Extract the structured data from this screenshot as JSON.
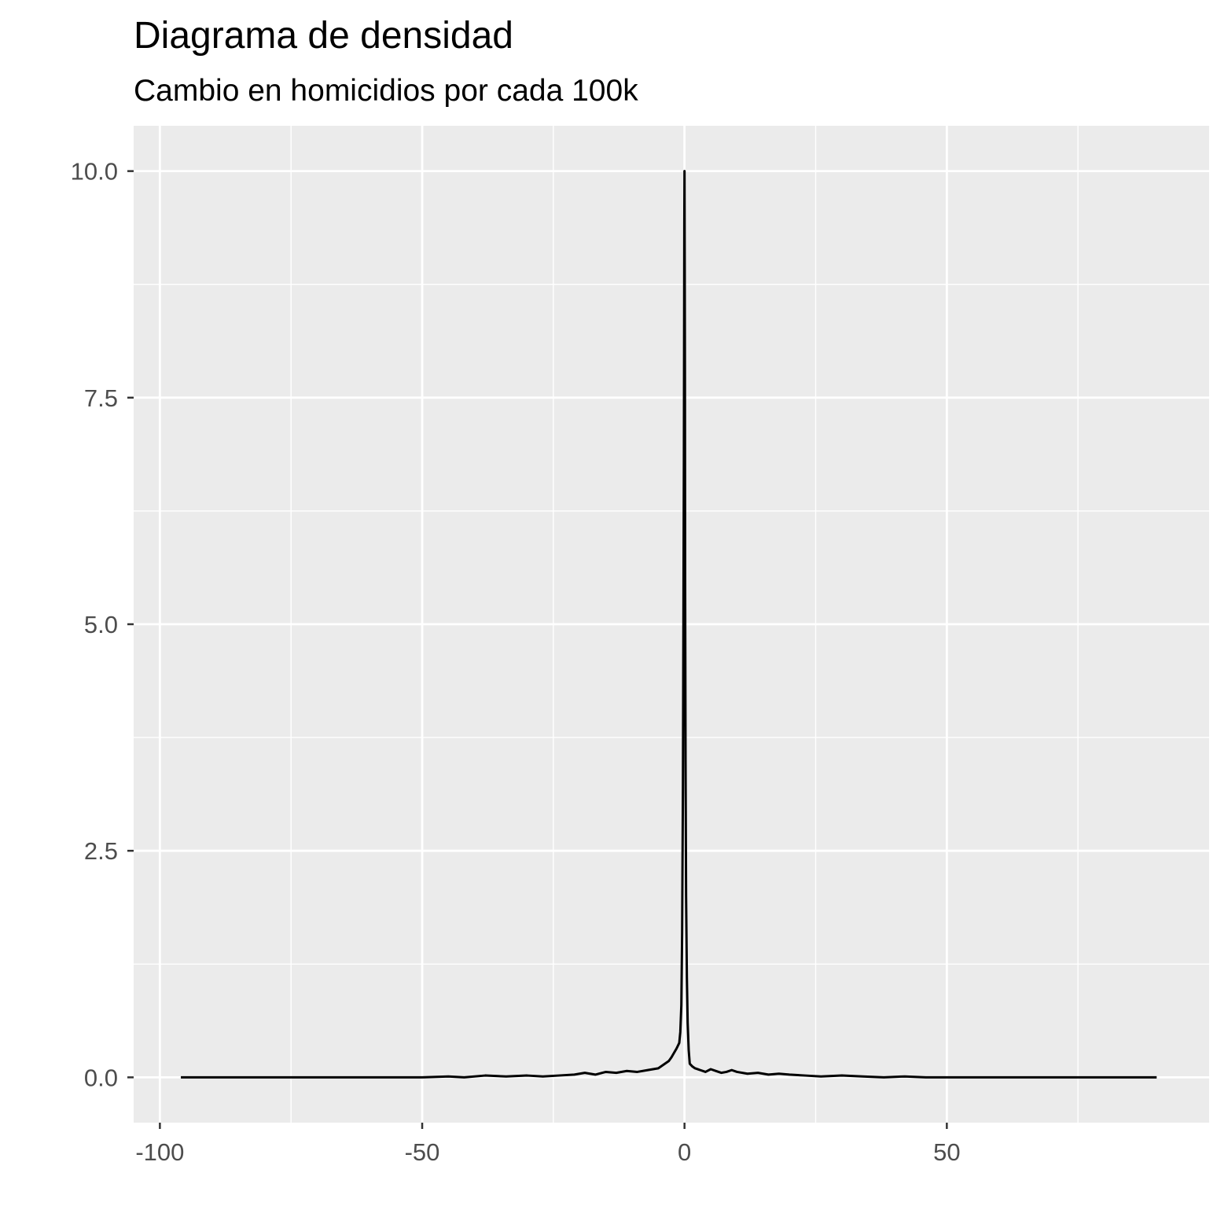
{
  "chart_data": {
    "type": "line",
    "title": "Diagrama de densidad",
    "subtitle": "Cambio en homicidios por cada 100k",
    "xlabel": "",
    "ylabel": "",
    "xlim": [
      -105,
      100
    ],
    "ylim": [
      -0.5,
      10.5
    ],
    "x_ticks": [
      -100,
      -50,
      0,
      50
    ],
    "x_tick_labels": [
      "-100",
      "-50",
      "0",
      "50"
    ],
    "y_ticks": [
      0,
      2.5,
      5,
      7.5,
      10
    ],
    "y_tick_labels": [
      "0.0",
      "2.5",
      "5.0",
      "7.5",
      "10.0"
    ],
    "x_minor": [
      -75,
      -25,
      25,
      75
    ],
    "y_minor": [
      1.25,
      3.75,
      6.25,
      8.75
    ],
    "grid": true,
    "panel_color": "#ebebeb",
    "line_color": "#000000",
    "series": [
      {
        "x": [
          -96,
          -80,
          -72,
          -60,
          -50,
          -45,
          -42,
          -38,
          -34,
          -30,
          -27,
          -24,
          -21,
          -19,
          -17,
          -15,
          -13,
          -11,
          -9,
          -7,
          -5,
          -4,
          -3,
          -2.5,
          -2,
          -1.5,
          -1,
          -0.8,
          -0.6,
          -0.45,
          -0.3,
          -0.2,
          -0.12,
          -0.08,
          -0.04,
          0,
          0.04,
          0.08,
          0.12,
          0.2,
          0.3,
          0.45,
          0.6,
          0.8,
          1,
          1.5,
          2,
          3,
          4,
          5,
          6,
          7,
          8,
          9,
          10,
          12,
          14,
          16,
          18,
          20,
          23,
          26,
          30,
          34,
          38,
          42,
          46,
          50,
          60,
          70,
          80,
          90
        ],
        "y": [
          0.0,
          0.0,
          0.0,
          0.0,
          0.0,
          0.01,
          0.0,
          0.02,
          0.01,
          0.02,
          0.01,
          0.02,
          0.03,
          0.05,
          0.03,
          0.06,
          0.05,
          0.07,
          0.06,
          0.08,
          0.1,
          0.14,
          0.18,
          0.22,
          0.27,
          0.32,
          0.38,
          0.5,
          0.8,
          1.6,
          3.2,
          5.2,
          6.8,
          8.0,
          9.4,
          10.0,
          9.0,
          7.8,
          5.5,
          3.5,
          2.0,
          1.1,
          0.6,
          0.3,
          0.15,
          0.12,
          0.1,
          0.08,
          0.06,
          0.09,
          0.07,
          0.05,
          0.06,
          0.08,
          0.06,
          0.04,
          0.05,
          0.03,
          0.04,
          0.03,
          0.02,
          0.01,
          0.02,
          0.01,
          0.0,
          0.01,
          0.0,
          0.0,
          0.0,
          0.0,
          0.0,
          0.0
        ]
      }
    ]
  }
}
